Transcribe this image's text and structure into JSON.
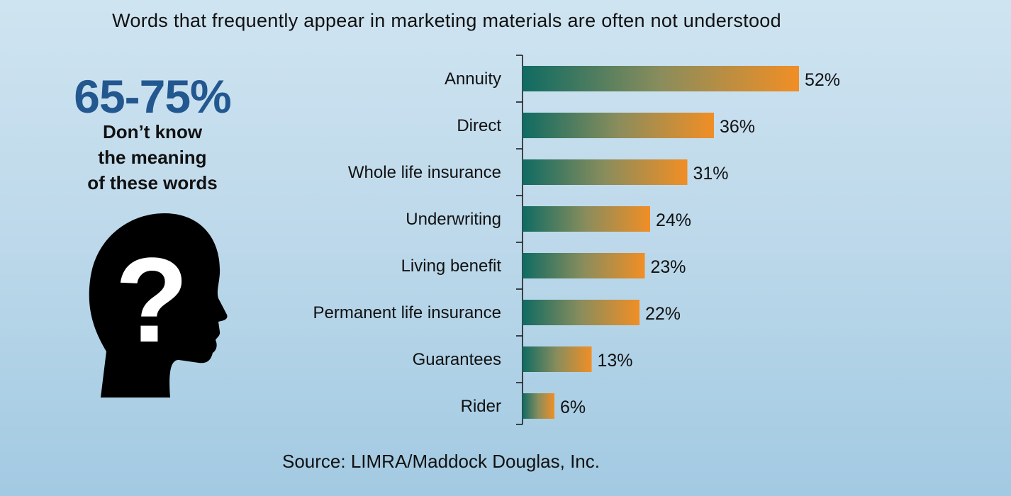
{
  "subtitle": "Words that frequently appear in marketing materials are often not understood",
  "callout": {
    "stat": "65-75%",
    "lines": [
      "Don’t know",
      "the meaning",
      "of these words"
    ]
  },
  "icons": {
    "head": "head-question-mark-icon"
  },
  "source": "Source: LIMRA/Maddock Douglas, Inc.",
  "colors": {
    "bar_start": "#0f6b63",
    "bar_end": "#f18e25",
    "stat": "#23578f"
  },
  "chart_data": {
    "type": "bar",
    "orientation": "horizontal",
    "categories": [
      "Annuity",
      "Direct",
      "Whole life insurance",
      "Underwriting",
      "Living  benefit",
      "Permanent life insurance",
      "Guarantees",
      "Rider"
    ],
    "values": [
      52,
      36,
      31,
      24,
      23,
      22,
      13,
      6
    ],
    "data_labels": [
      "52%",
      "36%",
      "31%",
      "24%",
      "23%",
      "22%",
      "13%",
      "6%"
    ],
    "unit": "%",
    "grid": false
  }
}
